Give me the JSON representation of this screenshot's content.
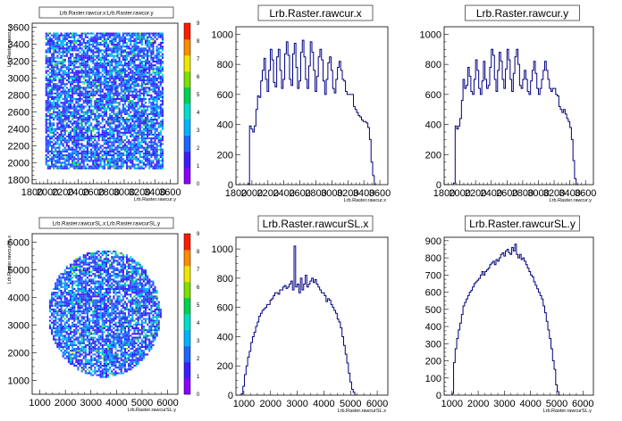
{
  "canvas_background": "#ffffff",
  "line_color": "#000080",
  "palette": [
    "#8b00ff",
    "#3c1dff",
    "#1e64ff",
    "#00b4ff",
    "#00e0c8",
    "#00d250",
    "#7ee000",
    "#f0e600",
    "#ff8c00",
    "#ff1a00"
  ],
  "chart_data": [
    {
      "id": "p1",
      "type": "heatmap",
      "title": "Lrb.Raster.rawcur.x:Lrb.Raster.rawcur.y",
      "xlabel": "Lrb.Raster.rawcur.y",
      "ylabel": "Lrb.Raster.rawcur.x",
      "xlim": [
        1800,
        3700
      ],
      "ylim": [
        1750,
        3650
      ],
      "xticks": [
        "1800",
        "2000",
        "2200",
        "2400",
        "2600",
        "2800",
        "3000",
        "3200",
        "3400",
        "3600"
      ],
      "yticks": [
        "1800",
        "2000",
        "2200",
        "2400",
        "2600",
        "2800",
        "3000",
        "3200",
        "3400",
        "3600"
      ],
      "z_ticks": [
        "0",
        "1",
        "2",
        "3",
        "4",
        "5",
        "6",
        "7",
        "8",
        "9"
      ],
      "region": {
        "shape": "rect",
        "x": [
          1950,
          3500
        ],
        "y": [
          1930,
          3540
        ]
      }
    },
    {
      "id": "p2",
      "type": "histogram",
      "title": "Lrb.Raster.rawcur.x",
      "xlabel": "Lrb.Raster.rawcur.x",
      "xlim": [
        1800,
        3700
      ],
      "ylim": [
        0,
        1050
      ],
      "xticks": [
        "1800",
        "2000",
        "2200",
        "2400",
        "2600",
        "2800",
        "3000",
        "3200",
        "3400",
        "3600"
      ],
      "yticks": [
        "0",
        "200",
        "400",
        "600",
        "800",
        "1000"
      ],
      "x_start": 1950,
      "bin_width": 20,
      "values": [
        5,
        390,
        370,
        350,
        390,
        500,
        590,
        580,
        690,
        760,
        840,
        700,
        620,
        760,
        900,
        830,
        680,
        650,
        850,
        900,
        760,
        640,
        700,
        870,
        950,
        860,
        700,
        660,
        870,
        940,
        780,
        640,
        690,
        880,
        960,
        850,
        700,
        640,
        790,
        950,
        880,
        760,
        620,
        720,
        850,
        900,
        830,
        690,
        600,
        700,
        810,
        850,
        760,
        640,
        610,
        700,
        780,
        820,
        760,
        700,
        690,
        620,
        600,
        600,
        600,
        600,
        520,
        500,
        480,
        460,
        450,
        430,
        420,
        420,
        410,
        380,
        300,
        150,
        60,
        0
      ]
    },
    {
      "id": "p3",
      "type": "histogram",
      "title": "Lrb.Raster.rawcur.y",
      "xlabel": "Lrb.Raster.rawcur.y",
      "xlim": [
        1800,
        3700
      ],
      "ylim": [
        0,
        1050
      ],
      "xticks": [
        "1800",
        "2000",
        "2200",
        "2400",
        "2600",
        "2800",
        "3000",
        "3200",
        "3400",
        "3600"
      ],
      "yticks": [
        "0",
        "200",
        "400",
        "600",
        "800",
        "1000"
      ],
      "x_start": 1920,
      "bin_width": 20,
      "values": [
        10,
        390,
        370,
        390,
        440,
        560,
        700,
        640,
        660,
        780,
        720,
        620,
        600,
        700,
        830,
        760,
        640,
        600,
        690,
        820,
        700,
        640,
        660,
        780,
        900,
        860,
        700,
        620,
        760,
        880,
        820,
        700,
        640,
        770,
        900,
        830,
        700,
        620,
        740,
        850,
        900,
        800,
        660,
        640,
        700,
        760,
        700,
        620,
        600,
        690,
        760,
        820,
        740,
        640,
        600,
        640,
        700,
        760,
        820,
        760,
        700,
        640,
        620,
        640,
        640,
        600,
        590,
        520,
        500,
        480,
        500,
        470,
        440,
        420,
        380,
        300,
        160,
        40,
        0
      ]
    },
    {
      "id": "p4",
      "type": "heatmap",
      "title": "Lrb.Raster.rawcurSL.x:Lrb.Raster.rawcurSL.y",
      "xlabel": "Lrb.Raster.rawcurSL.y",
      "ylabel": "Lrb.Raster.rawcurSL.x",
      "xlim": [
        700,
        6400
      ],
      "ylim": [
        500,
        6300
      ],
      "xticks": [
        "1000",
        "2000",
        "3000",
        "4000",
        "5000",
        "6000"
      ],
      "yticks": [
        "1000",
        "2000",
        "3000",
        "4000",
        "5000",
        "6000"
      ],
      "z_ticks": [
        "0",
        "1",
        "2",
        "3",
        "4",
        "5",
        "6",
        "7",
        "8",
        "9"
      ],
      "region": {
        "shape": "circle",
        "cx": 3500,
        "cy": 3450,
        "rx": 2200,
        "ry": 2300
      }
    },
    {
      "id": "p5",
      "type": "histogram",
      "title": "Lrb.Raster.rawcurSL.x",
      "xlabel": "Lrb.Raster.rawcurSL.x",
      "xlim": [
        700,
        6400
      ],
      "ylim": [
        0,
        1080
      ],
      "xticks": [
        "1000",
        "2000",
        "3000",
        "4000",
        "5000",
        "6000"
      ],
      "yticks": [
        "0",
        "200",
        "400",
        "600",
        "800",
        "1000"
      ],
      "x_start": 900,
      "bin_width": 60,
      "values": [
        10,
        60,
        140,
        200,
        260,
        300,
        360,
        400,
        430,
        470,
        500,
        540,
        560,
        580,
        590,
        600,
        620,
        620,
        650,
        660,
        680,
        700,
        700,
        690,
        720,
        720,
        740,
        750,
        730,
        740,
        760,
        780,
        720,
        1020,
        740,
        760,
        700,
        800,
        720,
        760,
        820,
        740,
        760,
        780,
        800,
        770,
        790,
        760,
        740,
        720,
        700,
        700,
        680,
        640,
        660,
        650,
        620,
        600,
        580,
        560,
        520,
        500,
        460,
        400,
        340,
        280,
        220,
        150,
        90,
        40,
        20,
        0
      ]
    },
    {
      "id": "p6",
      "type": "histogram",
      "title": "Lrb.Raster.rawcurSL.y",
      "xlabel": "Lrb.Raster.rawcurSL.y",
      "xlim": [
        700,
        6400
      ],
      "ylim": [
        0,
        920
      ],
      "xticks": [
        "1000",
        "2000",
        "3000",
        "4000",
        "5000",
        "6000"
      ],
      "yticks": [
        "0",
        "100",
        "200",
        "300",
        "400",
        "500",
        "600",
        "700",
        "800",
        "900"
      ],
      "x_start": 1000,
      "bin_width": 60,
      "values": [
        10,
        190,
        270,
        330,
        380,
        420,
        470,
        520,
        540,
        560,
        580,
        600,
        610,
        630,
        650,
        660,
        670,
        680,
        700,
        720,
        700,
        720,
        730,
        740,
        760,
        770,
        780,
        760,
        790,
        780,
        800,
        820,
        830,
        810,
        840,
        850,
        830,
        820,
        860,
        840,
        880,
        820,
        800,
        820,
        790,
        800,
        780,
        760,
        740,
        720,
        700,
        690,
        660,
        640,
        620,
        600,
        580,
        560,
        520,
        480,
        430,
        380,
        330,
        270,
        200,
        150,
        60,
        20,
        0
      ]
    }
  ]
}
